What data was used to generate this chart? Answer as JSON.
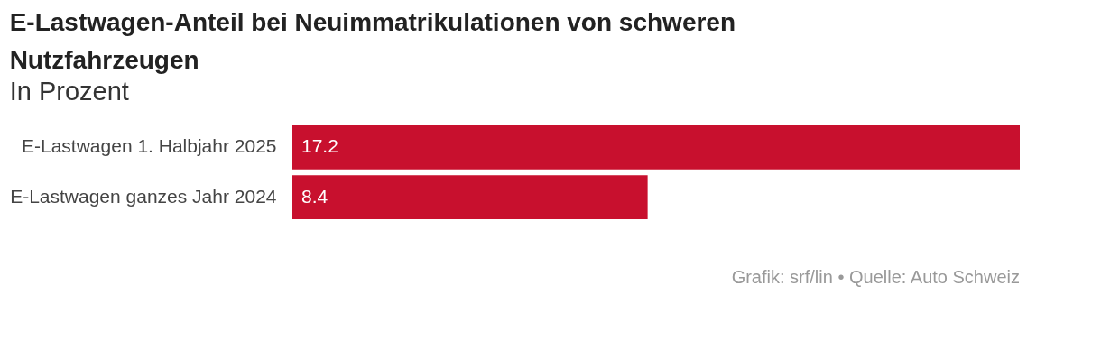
{
  "chart_data": {
    "type": "bar",
    "orientation": "horizontal",
    "title": "E-Lastwagen-Anteil bei Neuimmatrikulationen von schweren Nutzfahrzeugen",
    "subtitle": "In Prozent",
    "categories": [
      "E-Lastwagen 1. Halbjahr 2025",
      "E-Lastwagen ganzes Jahr 2024"
    ],
    "values": [
      17.2,
      8.4
    ],
    "color": "#c8102e",
    "data_labels": true,
    "annotations": [
      "Grafik: srf/lin • Quelle: Auto Schweiz"
    ]
  }
}
